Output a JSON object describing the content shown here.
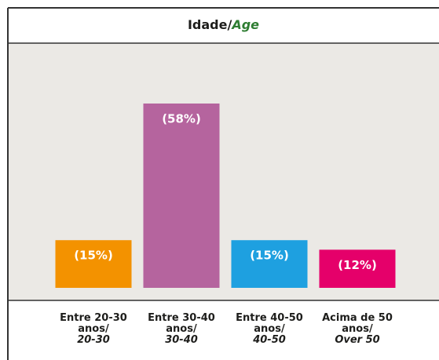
{
  "chart_data": {
    "type": "bar",
    "title": "Idade/",
    "title_en": "Age",
    "categories": [
      "Entre 20-30 anos/",
      "Entre 30-40 anos/",
      "Entre 40-50 anos/",
      "Acima de 50 anos/"
    ],
    "categories_en": [
      "20-30",
      "30-40",
      "40-50",
      "Over 50"
    ],
    "values": [
      15,
      58,
      15,
      12
    ],
    "value_labels": [
      "(15%)",
      "(58%)",
      "(15%)",
      "(12%)"
    ],
    "colors": [
      "#f39200",
      "#b5649e",
      "#1ea0e0",
      "#e5006a"
    ],
    "ylim": [
      0,
      77
    ]
  }
}
